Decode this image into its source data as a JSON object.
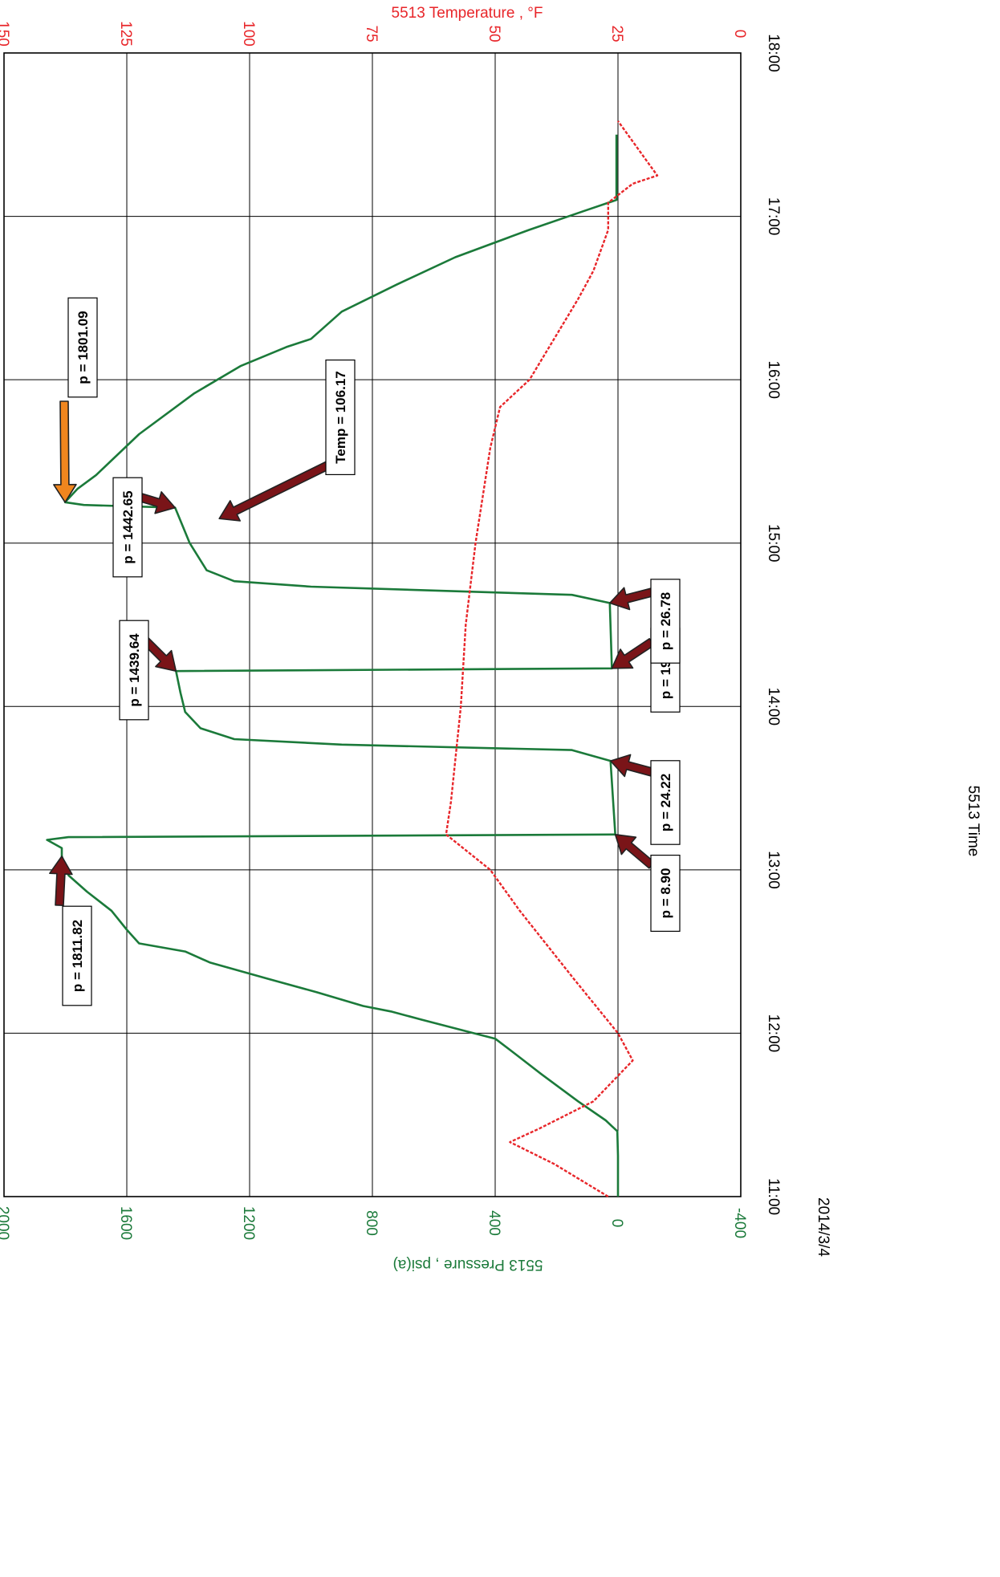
{
  "chart_data": {
    "type": "line",
    "orientation": "rotated-90-clockwise",
    "xlabel": "5513 Time",
    "date_label": "2014/3/4",
    "x_ticks": [
      "11:00",
      "12:00",
      "13:00",
      "14:00",
      "15:00",
      "16:00",
      "17:00",
      "18:00"
    ],
    "xlim": [
      "11:00",
      "18:00"
    ],
    "y1label": "5513 Pressure , psi(a)",
    "y1_ticks": [
      "-400",
      "0",
      "400",
      "800",
      "1200",
      "1600",
      "2000"
    ],
    "y1lim": [
      -400,
      2000
    ],
    "y2label": "5513 Temperature , °F",
    "y2_ticks": [
      "0",
      "25",
      "50",
      "75",
      "100",
      "125",
      "150"
    ],
    "y2lim": [
      0,
      150
    ],
    "grid": true,
    "colors": {
      "pressure": "#1b7a3a",
      "temperature": "#e8262a",
      "pressure_axis": "#1b7a3a",
      "temperature_axis": "#e8262a",
      "arrow_dark": "#7a1418",
      "arrow_orange": "#f0861e"
    },
    "series": [
      {
        "axis": "y1",
        "points": [
          [
            "11:00",
            0
          ],
          [
            "11:15",
            0
          ],
          [
            "11:24",
            2
          ],
          [
            "11:28",
            40
          ],
          [
            "11:35",
            130
          ],
          [
            "11:45",
            250
          ],
          [
            "11:52",
            330
          ],
          [
            "11:58",
            400
          ],
          [
            "12:00",
            470
          ],
          [
            "12:05",
            640
          ],
          [
            "12:08",
            740
          ],
          [
            "12:10",
            830
          ],
          [
            "12:15",
            980
          ],
          [
            "12:20",
            1140
          ],
          [
            "12:26",
            1330
          ],
          [
            "12:30",
            1410
          ],
          [
            "12:33",
            1560
          ],
          [
            "12:38",
            1600
          ],
          [
            "12:45",
            1650
          ],
          [
            "12:52",
            1730
          ],
          [
            "12:58",
            1790
          ],
          [
            "13:05",
            1811.82
          ],
          [
            "13:08",
            1811.82
          ],
          [
            "13:11",
            1860
          ],
          [
            "13:12",
            1790
          ],
          [
            "13:13",
            8.9
          ],
          [
            "13:15",
            10
          ],
          [
            "13:40",
            24.22
          ],
          [
            "13:44",
            150
          ],
          [
            "13:46",
            900
          ],
          [
            "13:48",
            1250
          ],
          [
            "13:52",
            1360
          ],
          [
            "13:58",
            1410
          ],
          [
            "14:05",
            1425
          ],
          [
            "14:13",
            1439.64
          ],
          [
            "14:14",
            19.88
          ],
          [
            "14:38",
            26.78
          ],
          [
            "14:41",
            150
          ],
          [
            "14:44",
            1000
          ],
          [
            "14:46",
            1250
          ],
          [
            "14:50",
            1340
          ],
          [
            "15:00",
            1395
          ],
          [
            "15:13",
            1442.65
          ],
          [
            "15:14",
            1740
          ],
          [
            "15:15",
            1801.09
          ],
          [
            "15:20",
            1760
          ],
          [
            "15:25",
            1700
          ],
          [
            "15:40",
            1560
          ],
          [
            "15:55",
            1380
          ],
          [
            "16:05",
            1230
          ],
          [
            "16:12",
            1080
          ],
          [
            "16:15",
            1000
          ],
          [
            "16:25",
            900
          ],
          [
            "16:35",
            720
          ],
          [
            "16:45",
            530
          ],
          [
            "16:55",
            290
          ],
          [
            "17:02",
            110
          ],
          [
            "17:06",
            5
          ],
          [
            "17:30",
            5
          ]
        ]
      },
      {
        "axis": "y2",
        "points": [
          [
            "11:00",
            27
          ],
          [
            "11:12",
            38
          ],
          [
            "11:20",
            47
          ],
          [
            "11:25",
            41
          ],
          [
            "11:35",
            30
          ],
          [
            "11:50",
            22
          ],
          [
            "12:00",
            25
          ],
          [
            "12:20",
            34
          ],
          [
            "12:45",
            45
          ],
          [
            "13:00",
            51
          ],
          [
            "13:13",
            60
          ],
          [
            "13:25",
            59
          ],
          [
            "14:00",
            57
          ],
          [
            "14:30",
            56
          ],
          [
            "15:00",
            54
          ],
          [
            "15:35",
            51
          ],
          [
            "15:50",
            49
          ],
          [
            "16:00",
            43
          ],
          [
            "16:15",
            38
          ],
          [
            "16:30",
            33
          ],
          [
            "16:40",
            30
          ],
          [
            "16:55",
            27
          ],
          [
            "17:05",
            27
          ],
          [
            "17:12",
            22
          ],
          [
            "17:15",
            17
          ],
          [
            "17:20",
            19
          ],
          [
            "17:35",
            25
          ]
        ]
      }
    ],
    "annotations": [
      {
        "label": "p = 1811.82",
        "x": "13:05",
        "y": 1811.82,
        "axis": "y1",
        "style": "dark"
      },
      {
        "label": "p = 8.90",
        "x": "13:13",
        "y": 8.9,
        "axis": "y1",
        "style": "dark"
      },
      {
        "label": "p = 24.22",
        "x": "13:40",
        "y": 24.22,
        "axis": "y1",
        "style": "dark"
      },
      {
        "label": "p = 1439.64",
        "x": "14:13",
        "y": 1439.64,
        "axis": "y1",
        "style": "dark"
      },
      {
        "label": "p = 19.88",
        "x": "14:14",
        "y": 19.88,
        "axis": "y1",
        "style": "dark"
      },
      {
        "label": "p = 26.78",
        "x": "14:38",
        "y": 26.78,
        "axis": "y1",
        "style": "dark"
      },
      {
        "label": "p = 1442.65",
        "x": "15:13",
        "y": 1442.65,
        "axis": "y1",
        "style": "dark"
      },
      {
        "label": "Temp = 106.17",
        "x": "15:09",
        "y": 106.17,
        "axis": "y2",
        "style": "dark"
      },
      {
        "label": "p = 1801.09",
        "x": "15:15",
        "y": 1801.09,
        "axis": "y1",
        "style": "orange"
      }
    ]
  }
}
